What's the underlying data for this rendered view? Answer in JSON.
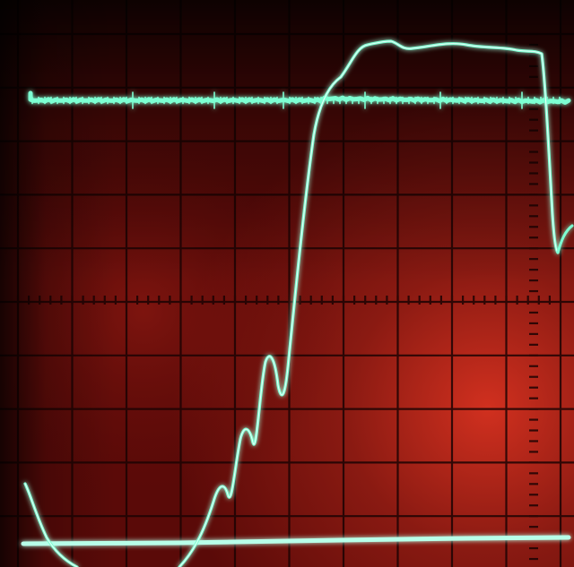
{
  "scene": {
    "subject": "oscilloscope-screen",
    "graticule": {
      "divisions_x": 10,
      "divisions_y": 10
    },
    "colors": {
      "screen": "#6e0d0b",
      "screen_glow": "#c4261c",
      "grid": "#1a0202",
      "trace": "#7dffd2",
      "trace_core": "#e6fff7",
      "bezel": "#050000"
    },
    "traces": [
      "step-response-trace",
      "upper-reference-trace",
      "lower-baseline-trace"
    ]
  }
}
